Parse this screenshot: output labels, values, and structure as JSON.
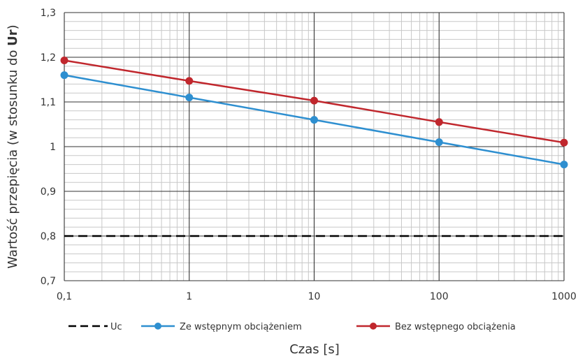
{
  "chart_data": {
    "type": "line",
    "xscale": "log",
    "x": [
      0.1,
      1,
      10,
      100,
      1000
    ],
    "x_tick_labels": [
      "0,1",
      "1",
      "10",
      "100",
      "1000"
    ],
    "xlim": [
      0.1,
      1000
    ],
    "ylim": [
      0.7,
      1.3
    ],
    "y_ticks": [
      0.7,
      0.8,
      0.9,
      1.0,
      1.1,
      1.2,
      1.3
    ],
    "y_tick_labels": [
      "0,7",
      "0,8",
      "0,9",
      "1",
      "1,1",
      "1,2",
      "1,3"
    ],
    "xlabel": "Czas [s]",
    "ylabel_prefix": "Wartość przepięcia (w stosunku do ",
    "ylabel_bold": "Ur",
    "ylabel_suffix": ")",
    "grid": true,
    "legend": "bottom",
    "series": [
      {
        "name": "Uc",
        "color": "#000000",
        "style": "dashed",
        "marker": "none",
        "values": [
          0.8,
          0.8,
          0.8,
          0.8,
          0.8
        ]
      },
      {
        "name": "Ze wstępnym obciążeniem",
        "color": "#2e8fd0",
        "style": "solid",
        "marker": "circle",
        "values": [
          1.16,
          1.11,
          1.06,
          1.01,
          0.96
        ]
      },
      {
        "name": "Bez wstępnego obciążenia",
        "color": "#c0272d",
        "style": "solid",
        "marker": "circle",
        "values": [
          1.193,
          1.147,
          1.103,
          1.055,
          1.009
        ]
      }
    ]
  }
}
